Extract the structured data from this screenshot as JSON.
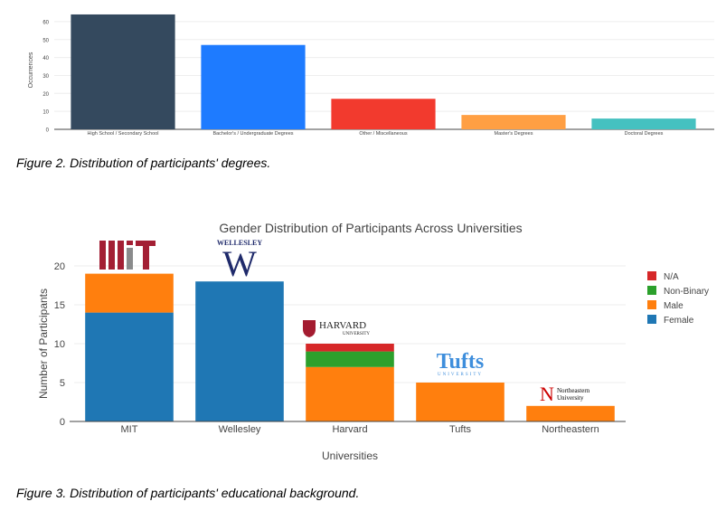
{
  "chart_data": [
    {
      "type": "bar",
      "ylabel": "Occurrences",
      "xlabel": "",
      "ylim": [
        0,
        66
      ],
      "yticks": [
        0,
        10,
        20,
        30,
        40,
        50,
        60
      ],
      "grid": true,
      "categories": [
        "High School / Secondary School",
        "Bachelor's / Undergraduate Degrees",
        "Other / Miscellaneous",
        "Master's Degrees",
        "Doctoral Degrees"
      ],
      "values": [
        64,
        47,
        17,
        8,
        6
      ],
      "colors": [
        "#34495e",
        "#1e7bff",
        "#f23a2e",
        "#ff9f43",
        "#45c1c0"
      ]
    },
    {
      "type": "bar",
      "stacked": true,
      "title": "Gender Distribution of Participants Across Universities",
      "xlabel": "Universities",
      "ylabel": "Number of Participants",
      "ylim": [
        0,
        20
      ],
      "yticks": [
        0,
        5,
        10,
        15,
        20
      ],
      "grid": true,
      "legend_position": "right",
      "categories": [
        "MIT",
        "Wellesley",
        "Harvard",
        "Tufts",
        "Northeastern"
      ],
      "series": [
        {
          "name": "Female",
          "color": "#1f77b4",
          "values": [
            14,
            18,
            0,
            0,
            0
          ]
        },
        {
          "name": "Male",
          "color": "#ff7f0e",
          "values": [
            5,
            0,
            7,
            5,
            2
          ]
        },
        {
          "name": "Non-Binary",
          "color": "#2ca02c",
          "values": [
            0,
            0,
            2,
            0,
            0
          ]
        },
        {
          "name": "N/A",
          "color": "#d62728",
          "values": [
            0,
            0,
            1,
            0,
            0
          ]
        }
      ],
      "legend_order": [
        "N/A",
        "Non-Binary",
        "Male",
        "Female"
      ],
      "logos": [
        {
          "name": "MIT",
          "text": "MIT"
        },
        {
          "name": "Wellesley",
          "text": "WELLESLEY",
          "mark": "W"
        },
        {
          "name": "Harvard",
          "text": "HARVARD",
          "subtext": "UNIVERSITY"
        },
        {
          "name": "Tufts",
          "text": "Tufts",
          "subtext": "UNIVERSITY"
        },
        {
          "name": "Northeastern",
          "text": "Northeastern",
          "subtext": "University",
          "mark": "N"
        }
      ]
    }
  ],
  "captions": {
    "figure2": "Figure 2. Distribution of participants' degrees.",
    "figure3": "Figure 3. Distribution of participants' educational background."
  }
}
